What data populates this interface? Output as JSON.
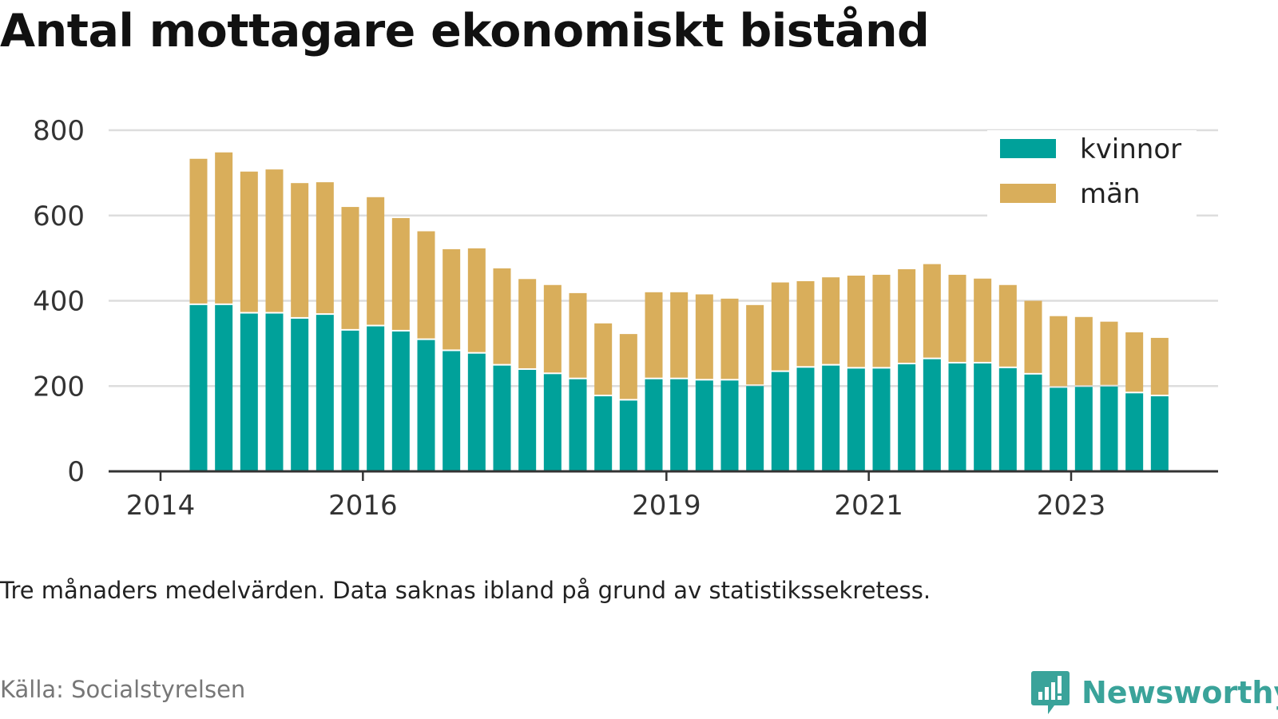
{
  "title": "Antal mottagare ekonomiskt bistånd",
  "note": "Tre månaders medelvärden. Data saknas ibland på grund av statistikssekretess.",
  "source": "Källa: Socialstyrelsen",
  "brand": {
    "name": "Newsworthy",
    "icon": "newsworthy-logo-icon",
    "color": "#3aa39a"
  },
  "colors": {
    "kvinnor": "#00a19a",
    "man": "#d9ae5b",
    "grid": "#dddddd",
    "axis": "#333333"
  },
  "chart_data": {
    "type": "bar",
    "stacked": true,
    "x_type": "date",
    "xlim": [
      "2014-01-01",
      "2024-06-01"
    ],
    "xticks": [
      {
        "date": "2014-01-01",
        "label": "2014"
      },
      {
        "date": "2016-01-01",
        "label": "2016"
      },
      {
        "date": "2019-01-01",
        "label": "2019"
      },
      {
        "date": "2021-01-01",
        "label": "2021"
      },
      {
        "date": "2023-01-01",
        "label": "2023"
      }
    ],
    "ylim": [
      0,
      800
    ],
    "yticks": [
      0,
      200,
      400,
      600,
      800
    ],
    "grid": true,
    "legend": "top-right",
    "x": [
      "2014-05",
      "2014-08",
      "2014-11",
      "2015-02",
      "2015-05",
      "2015-08",
      "2015-11",
      "2016-02",
      "2016-05",
      "2016-08",
      "2016-11",
      "2017-02",
      "2017-05",
      "2017-08",
      "2017-11",
      "2018-02",
      "2018-05",
      "2018-08",
      "2018-11",
      "2019-02",
      "2019-05",
      "2019-08",
      "2019-11",
      "2020-02",
      "2020-05",
      "2020-08",
      "2020-11",
      "2021-02",
      "2021-05",
      "2021-08",
      "2021-11",
      "2022-02",
      "2022-05",
      "2022-08",
      "2022-11",
      "2023-02",
      "2023-05",
      "2023-08",
      "2023-11"
    ],
    "series": [
      {
        "name": "kvinnor",
        "values": [
          390,
          390,
          370,
          370,
          358,
          367,
          330,
          340,
          328,
          308,
          282,
          276,
          248,
          238,
          228,
          216,
          176,
          166,
          216,
          216,
          213,
          213,
          200,
          233,
          243,
          248,
          241,
          241,
          251,
          263,
          253,
          253,
          242,
          227,
          196,
          198,
          199,
          183,
          176
        ]
      },
      {
        "name": "män",
        "values": [
          343,
          358,
          333,
          338,
          318,
          311,
          290,
          303,
          266,
          255,
          239,
          247,
          228,
          213,
          209,
          202,
          171,
          156,
          204,
          204,
          202,
          192,
          190,
          210,
          203,
          207,
          218,
          220,
          223,
          223,
          208,
          199,
          195,
          173,
          168,
          164,
          152,
          143,
          137
        ]
      }
    ]
  }
}
